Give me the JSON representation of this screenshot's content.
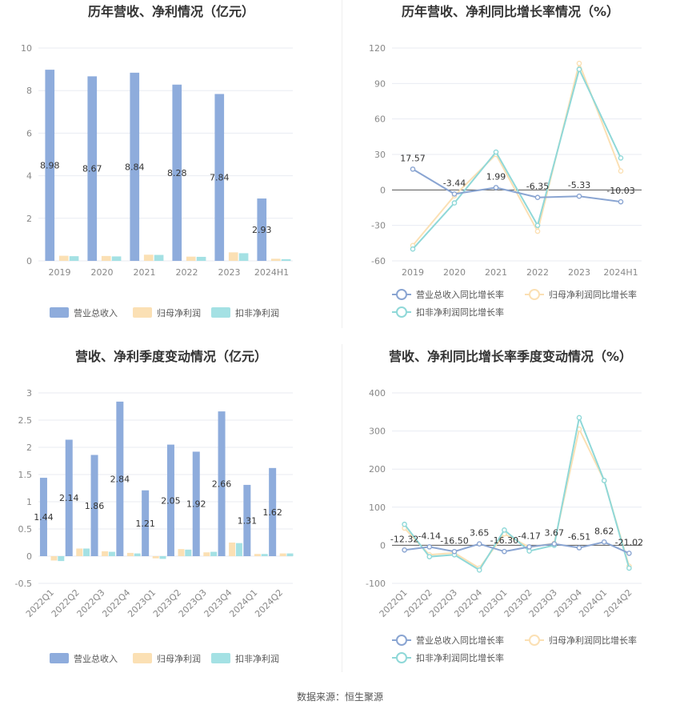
{
  "source_text": "数据来源：恒生聚源",
  "colors": {
    "revenue": "#8eacdc",
    "net_profit": "#fbe0b4",
    "deducted_net_profit": "#a4e1e4",
    "revenue_line": "#8aa5d2",
    "net_profit_line": "#fbe0b4",
    "deducted_line": "#8fd8d8",
    "grid": "#e8ebf2",
    "zero_axis": "#555555"
  },
  "chart_data": [
    {
      "type": "bar",
      "title": "历年营收、净利情况（亿元）",
      "categories": [
        "2019",
        "2020",
        "2021",
        "2022",
        "2023",
        "2024H1"
      ],
      "ylim": [
        0,
        10
      ],
      "yticks": [
        "0",
        "2",
        "4",
        "6",
        "8",
        "10"
      ],
      "grid": true,
      "legend_position": "bottom",
      "series": [
        {
          "name": "营业总收入",
          "values": [
            8.98,
            8.67,
            8.84,
            8.28,
            7.84,
            2.93
          ],
          "labels": [
            "8.98",
            "8.67",
            "8.84",
            "8.28",
            "7.84",
            "2.93"
          ]
        },
        {
          "name": "归母净利润",
          "values": [
            0.24,
            0.23,
            0.29,
            0.2,
            0.4,
            0.1
          ]
        },
        {
          "name": "扣非净利润",
          "values": [
            0.22,
            0.21,
            0.28,
            0.19,
            0.36,
            0.08
          ]
        }
      ]
    },
    {
      "type": "line",
      "title": "历年营收、净利同比增长率情况（%）",
      "categories": [
        "2019",
        "2020",
        "2021",
        "2022",
        "2023",
        "2024H1"
      ],
      "ylim": [
        -60,
        120
      ],
      "yticks": [
        "-60",
        "-30",
        "0",
        "30",
        "60",
        "90",
        "120"
      ],
      "grid": true,
      "legend_position": "bottom",
      "series": [
        {
          "name": "营业总收入同比增长率",
          "values": [
            17.57,
            -3.44,
            1.99,
            -6.35,
            -5.33,
            -10.03
          ],
          "labels": [
            "17.57",
            "-3.44",
            "1.99",
            "-6.35",
            "-5.33",
            "-10.03"
          ]
        },
        {
          "name": "归母净利润同比增长率",
          "values": [
            -47,
            -5,
            30,
            -35,
            107,
            16
          ]
        },
        {
          "name": "扣非净利润同比增长率",
          "values": [
            -50,
            -11,
            32,
            -30,
            102,
            27
          ]
        }
      ]
    },
    {
      "type": "bar",
      "title": "营收、净利季度变动情况（亿元）",
      "categories": [
        "2022Q1",
        "2022Q2",
        "2022Q3",
        "2022Q4",
        "2023Q1",
        "2023Q2",
        "2023Q3",
        "2023Q4",
        "2024Q1",
        "2024Q2"
      ],
      "ylim": [
        -0.5,
        3
      ],
      "yticks": [
        "-0.5",
        "0",
        "0.5",
        "1",
        "1.5",
        "2",
        "2.5",
        "3"
      ],
      "grid": true,
      "legend_position": "bottom",
      "series": [
        {
          "name": "营业总收入",
          "values": [
            1.44,
            2.14,
            1.86,
            2.84,
            1.21,
            2.05,
            1.92,
            2.66,
            1.31,
            1.62
          ],
          "labels": [
            "1.44",
            "2.14",
            "1.86",
            "2.84",
            "1.21",
            "2.05",
            "1.92",
            "2.66",
            "1.31",
            "1.62"
          ]
        },
        {
          "name": "归母净利润",
          "values": [
            -0.08,
            0.14,
            0.09,
            0.06,
            -0.04,
            0.13,
            0.07,
            0.25,
            0.04,
            0.05
          ]
        },
        {
          "name": "扣非净利润",
          "values": [
            -0.09,
            0.14,
            0.08,
            0.05,
            -0.05,
            0.12,
            0.08,
            0.24,
            0.04,
            0.05
          ]
        }
      ]
    },
    {
      "type": "line",
      "title": "营收、净利同比增长率季度变动情况（%）",
      "categories": [
        "2022Q1",
        "2022Q2",
        "2022Q3",
        "2022Q4",
        "2023Q1",
        "2023Q2",
        "2023Q3",
        "2023Q4",
        "2024Q1",
        "2024Q2"
      ],
      "ylim": [
        -100,
        400
      ],
      "yticks": [
        "-100",
        "0",
        "100",
        "200",
        "300",
        "400"
      ],
      "grid": true,
      "legend_position": "bottom",
      "series": [
        {
          "name": "营业总收入同比增长率",
          "values": [
            -12.32,
            -4.14,
            -16.5,
            3.65,
            -16.3,
            -4.17,
            3.67,
            -6.51,
            8.62,
            -21.02
          ],
          "labels": [
            "-12.32",
            "-4.14",
            "-16.50",
            "3.65",
            "-16.30",
            "-4.17",
            "3.67",
            "-6.51",
            "8.62",
            "-21.02"
          ]
        },
        {
          "name": "归母净利润同比增长率",
          "values": [
            45,
            -25,
            -20,
            -60,
            30,
            -5,
            5,
            305,
            170,
            -55
          ]
        },
        {
          "name": "扣非净利润同比增长率",
          "values": [
            55,
            -30,
            -25,
            -65,
            40,
            -15,
            0,
            335,
            170,
            -60
          ]
        }
      ]
    }
  ]
}
